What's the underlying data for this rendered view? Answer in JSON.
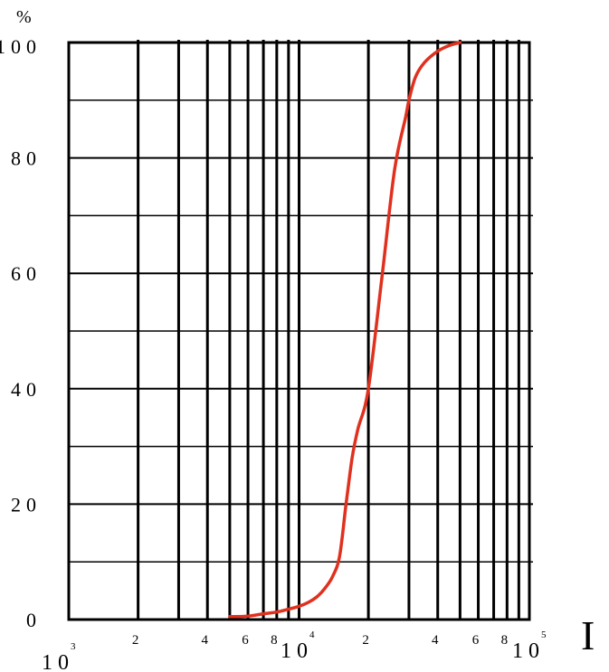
{
  "chart_data": {
    "type": "line",
    "title": "",
    "xlabel": "",
    "ylabel": "%",
    "x_scale": "log",
    "xlim": [
      1000,
      100000
    ],
    "ylim": [
      0,
      100
    ],
    "y_ticks": [
      "0",
      "20",
      "40",
      "60",
      "80",
      "100"
    ],
    "y_tick_values": [
      0,
      20,
      40,
      60,
      80,
      100
    ],
    "x_major_ticks": [
      {
        "value": 1000,
        "base": "10",
        "exp": "3"
      },
      {
        "value": 10000,
        "base": "10",
        "exp": "4"
      },
      {
        "value": 100000,
        "base": "10",
        "exp": "5"
      }
    ],
    "x_minor_ticks": [
      {
        "value": 2000,
        "label": "2"
      },
      {
        "value": 4000,
        "label": "4"
      },
      {
        "value": 6000,
        "label": "6"
      },
      {
        "value": 8000,
        "label": "8"
      },
      {
        "value": 20000,
        "label": "2"
      },
      {
        "value": 40000,
        "label": "4"
      },
      {
        "value": 60000,
        "label": "6"
      },
      {
        "value": 80000,
        "label": "8"
      }
    ],
    "x_gridlines": [
      2000,
      3000,
      4000,
      5000,
      6000,
      7000,
      8000,
      9000,
      20000,
      30000,
      40000,
      50000,
      60000,
      70000,
      80000,
      90000
    ],
    "y_gridlines": [
      10,
      20,
      30,
      40,
      50,
      60,
      70,
      80,
      90
    ],
    "grid": true,
    "series": [
      {
        "color": "#e0301e",
        "x": [
          5000,
          6000,
          7000,
          8000,
          9000,
          10000,
          11000,
          12000,
          13000,
          14000,
          15000,
          16000,
          17000,
          18000,
          20000,
          23000,
          26000,
          29000,
          30000,
          32000,
          35000,
          40000,
          45000,
          50000
        ],
        "y": [
          0.5,
          0.6,
          1.0,
          1.3,
          1.8,
          2.3,
          3.0,
          4.0,
          5.5,
          7.5,
          11.0,
          20.0,
          28.0,
          33.0,
          40.0,
          60.0,
          78.0,
          87.0,
          90.0,
          94.0,
          96.5,
          98.5,
          99.5,
          100.0
        ]
      }
    ]
  },
  "side_mark": "I"
}
